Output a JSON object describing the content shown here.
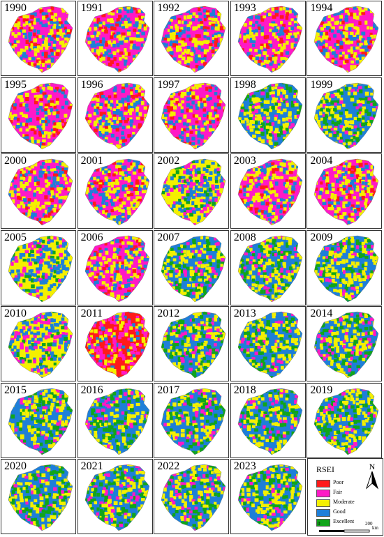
{
  "years": [
    "1990",
    "1991",
    "1992",
    "1993",
    "1994",
    "1995",
    "1996",
    "1997",
    "1998",
    "1999",
    "2000",
    "2001",
    "2002",
    "2003",
    "2004",
    "2005",
    "2006",
    "2007",
    "2008",
    "2009",
    "2010",
    "2011",
    "2012",
    "2013",
    "2014",
    "2015",
    "2016",
    "2017",
    "2018",
    "2019",
    "2020",
    "2021",
    "2022",
    "2023"
  ],
  "map_dominant_class": [
    "Fair",
    "Fair",
    "Fair",
    "Fair",
    "Fair",
    "Fair",
    "Fair",
    "Fair",
    "Good",
    "Good",
    "Fair",
    "Fair",
    "Moderate",
    "Fair",
    "Fair",
    "Moderate",
    "Fair",
    "Good",
    "Good",
    "Good",
    "Moderate",
    "Poor",
    "Good",
    "Good",
    "Good",
    "Good",
    "Good",
    "Good",
    "Good",
    "Good",
    "Good",
    "Good",
    "Good",
    "Good"
  ],
  "legend": {
    "title": "RSEI",
    "items": [
      {
        "label": "Poor",
        "color": "#ff1a1a"
      },
      {
        "label": "Fair",
        "color": "#ff19c6"
      },
      {
        "label": "Moderate",
        "color": "#f4f000"
      },
      {
        "label": "Good",
        "color": "#1e7fd8"
      },
      {
        "label": "Excellent",
        "color": "#11a51a"
      }
    ]
  },
  "north_label": "N",
  "scale": {
    "zero": "0",
    "max": "200",
    "unit": "km"
  }
}
